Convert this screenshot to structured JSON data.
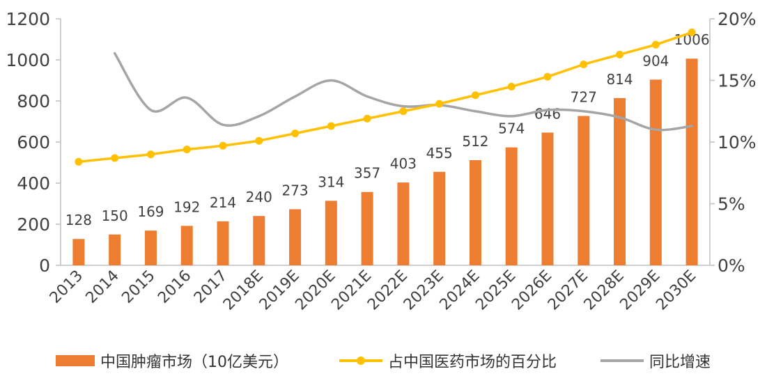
{
  "chart_data": {
    "type": "bar",
    "categories": [
      "2013",
      "2014",
      "2015",
      "2016",
      "2017",
      "2018E",
      "2019E",
      "2020E",
      "2021E",
      "2022E",
      "2023E",
      "2024E",
      "2025E",
      "2026E",
      "2027E",
      "2028E",
      "2029E",
      "2030E"
    ],
    "series": [
      {
        "name": "中国肿瘤市场（10亿美元）",
        "type": "bar",
        "axis": "left",
        "color": "#ED7D31",
        "values": [
          128,
          150,
          169,
          192,
          214,
          240,
          273,
          314,
          357,
          403,
          455,
          512,
          574,
          646,
          727,
          814,
          904,
          1006
        ],
        "labels": [
          "128",
          "150",
          "169",
          "192",
          "214",
          "240",
          "273",
          "314",
          "357",
          "403",
          "455",
          "512",
          "574",
          "646",
          "727",
          "814",
          "904",
          "1006"
        ]
      },
      {
        "name": "占中国医药市场的百分比",
        "type": "line",
        "axis": "right",
        "color": "#FFC000",
        "marker": "circle",
        "values": [
          8.4,
          8.7,
          9.0,
          9.4,
          9.7,
          10.1,
          10.7,
          11.3,
          11.9,
          12.5,
          13.1,
          13.8,
          14.5,
          15.3,
          16.3,
          17.1,
          17.9,
          18.9
        ]
      },
      {
        "name": "同比增速",
        "type": "line",
        "axis": "right",
        "color": "#A5A5A5",
        "marker": "none",
        "values": [
          null,
          17.2,
          12.6,
          13.6,
          11.4,
          12.1,
          13.7,
          15.0,
          13.7,
          12.9,
          13.0,
          12.5,
          12.1,
          12.6,
          12.5,
          12.0,
          11.0,
          11.3
        ]
      }
    ],
    "y_left": {
      "ylim": [
        0,
        1200
      ],
      "ticks": [
        0,
        200,
        400,
        600,
        800,
        1000,
        1200
      ],
      "tick_labels": [
        "0",
        "200",
        "400",
        "600",
        "800",
        "1000",
        "1200"
      ]
    },
    "y_right": {
      "ylim": [
        0,
        20
      ],
      "ticks": [
        0,
        5,
        10,
        15,
        20
      ],
      "tick_labels": [
        "0%",
        "5%",
        "10%",
        "15%",
        "20%"
      ]
    },
    "grid": false,
    "legend": "bottom"
  },
  "colors": {
    "bar": "#ED7D31",
    "share_line": "#FFC000",
    "growth_line": "#A5A5A5",
    "axis": "#BFBFBF",
    "text": "#333333"
  }
}
